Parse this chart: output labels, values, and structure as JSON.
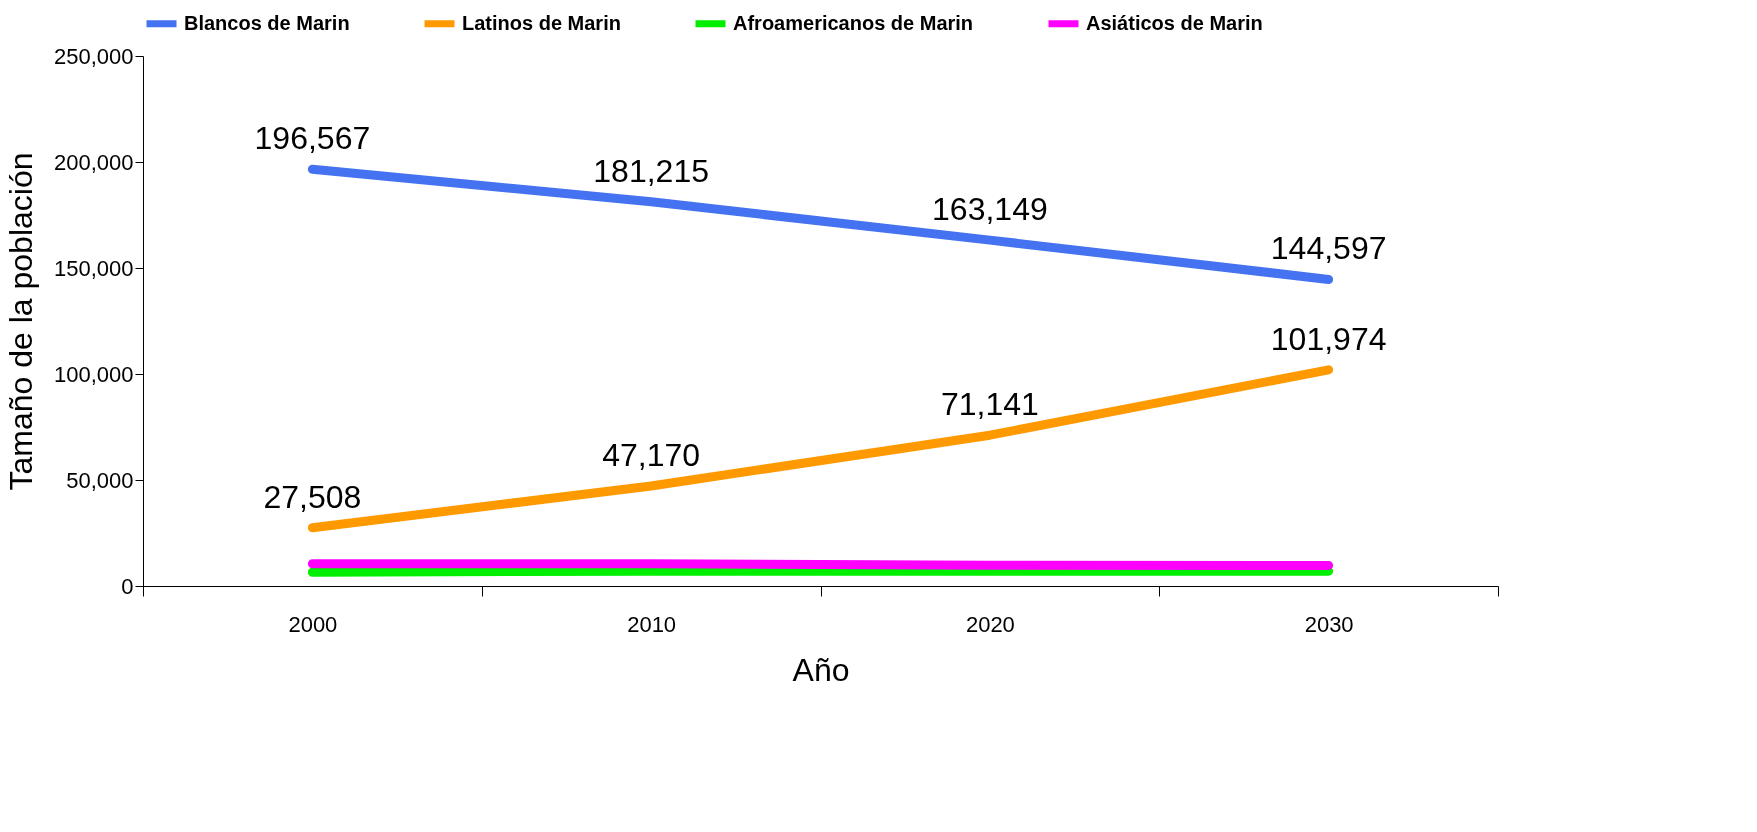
{
  "chart_data": {
    "type": "line",
    "xlabel": "Año",
    "ylabel": "Tamaño de la población",
    "categories": [
      "2000",
      "2010",
      "2020",
      "2030"
    ],
    "series": [
      {
        "name": "Blancos de Marin",
        "color": "#4472f0",
        "values": [
          196567,
          181215,
          163149,
          144597
        ],
        "value_labels": [
          "196,567",
          "181,215",
          "163,149",
          "144,597"
        ]
      },
      {
        "name": "Latinos de Marin",
        "color": "#ff9900",
        "values": [
          27508,
          47170,
          71141,
          101974
        ],
        "value_labels": [
          "27,508",
          "47,170",
          "71,141",
          "101,974"
        ]
      },
      {
        "name": "Afroamericanos de Marin",
        "color": "#00ee00",
        "values": [
          6500,
          7000,
          7000,
          7000
        ]
      },
      {
        "name": "Asiáticos de Marin",
        "color": "#ff00ff",
        "values": [
          10500,
          10500,
          9800,
          9700
        ]
      }
    ],
    "ylim": [
      0,
      250000
    ],
    "yticks": [
      0,
      {
        "value": 50000,
        "label": "50,000"
      },
      {
        "value": 100000,
        "label": "100,000"
      },
      {
        "value": 150000,
        "label": "150,000"
      },
      {
        "value": 200000,
        "label": "200,000"
      },
      {
        "value": 250000,
        "label": "250,000"
      }
    ],
    "grid": false,
    "legend": "top",
    "marker": "none",
    "line_style": "solid"
  }
}
